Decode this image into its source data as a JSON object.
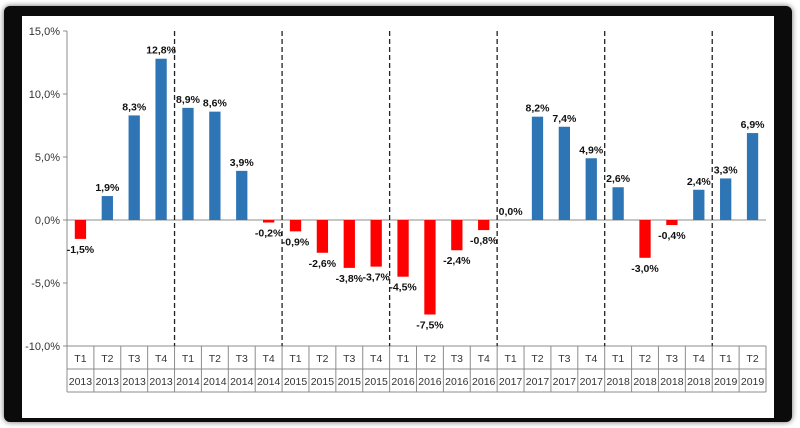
{
  "chart_data": {
    "type": "bar",
    "y_tick_labels": [
      "15,0%",
      "10,0%",
      "5,0%",
      "0,0%",
      "-5,0%",
      "-10,0%"
    ],
    "y_ticks": [
      15,
      10,
      5,
      0,
      -5,
      -10
    ],
    "ylim": [
      -10,
      15
    ],
    "grid": false,
    "legend": "none",
    "colors": {
      "positive": "#2e75b6",
      "negative": "#ff0000"
    },
    "separators_after_index": [
      3,
      7,
      11,
      15,
      19,
      23
    ],
    "bars": [
      {
        "quarter": "T1",
        "year": "2013",
        "value": -1.5,
        "label": "-1,5%"
      },
      {
        "quarter": "T2",
        "year": "2013",
        "value": 1.9,
        "label": "1,9%"
      },
      {
        "quarter": "T3",
        "year": "2013",
        "value": 8.3,
        "label": "8,3%"
      },
      {
        "quarter": "T4",
        "year": "2013",
        "value": 12.8,
        "label": "12,8%"
      },
      {
        "quarter": "T1",
        "year": "2014",
        "value": 8.9,
        "label": "8,9%"
      },
      {
        "quarter": "T2",
        "year": "2014",
        "value": 8.6,
        "label": "8,6%"
      },
      {
        "quarter": "T3",
        "year": "2014",
        "value": 3.9,
        "label": "3,9%"
      },
      {
        "quarter": "T4",
        "year": "2014",
        "value": -0.2,
        "label": "-0,2%"
      },
      {
        "quarter": "T1",
        "year": "2015",
        "value": -0.9,
        "label": "-0,9%"
      },
      {
        "quarter": "T2",
        "year": "2015",
        "value": -2.6,
        "label": "-2,6%"
      },
      {
        "quarter": "T3",
        "year": "2015",
        "value": -3.8,
        "label": "-3,8%"
      },
      {
        "quarter": "T4",
        "year": "2015",
        "value": -3.7,
        "label": "-3,7%"
      },
      {
        "quarter": "T1",
        "year": "2016",
        "value": -4.5,
        "label": "-4,5%"
      },
      {
        "quarter": "T2",
        "year": "2016",
        "value": -7.5,
        "label": "-7,5%"
      },
      {
        "quarter": "T3",
        "year": "2016",
        "value": -2.4,
        "label": "-2,4%"
      },
      {
        "quarter": "T4",
        "year": "2016",
        "value": -0.8,
        "label": "-0,8%"
      },
      {
        "quarter": "T1",
        "year": "2017",
        "value": 0.0,
        "label": "0,0%"
      },
      {
        "quarter": "T2",
        "year": "2017",
        "value": 8.2,
        "label": "8,2%"
      },
      {
        "quarter": "T3",
        "year": "2017",
        "value": 7.4,
        "label": "7,4%"
      },
      {
        "quarter": "T4",
        "year": "2017",
        "value": 4.9,
        "label": "4,9%"
      },
      {
        "quarter": "T1",
        "year": "2018",
        "value": 2.6,
        "label": "2,6%"
      },
      {
        "quarter": "T2",
        "year": "2018",
        "value": -3.0,
        "label": "-3,0%"
      },
      {
        "quarter": "T3",
        "year": "2018",
        "value": -0.4,
        "label": "-0,4%"
      },
      {
        "quarter": "T4",
        "year": "2018",
        "value": 2.4,
        "label": "2,4%"
      },
      {
        "quarter": "T1",
        "year": "2019",
        "value": 3.3,
        "label": "3,3%"
      },
      {
        "quarter": "T2",
        "year": "2019",
        "value": 6.9,
        "label": "6,9%"
      }
    ]
  }
}
